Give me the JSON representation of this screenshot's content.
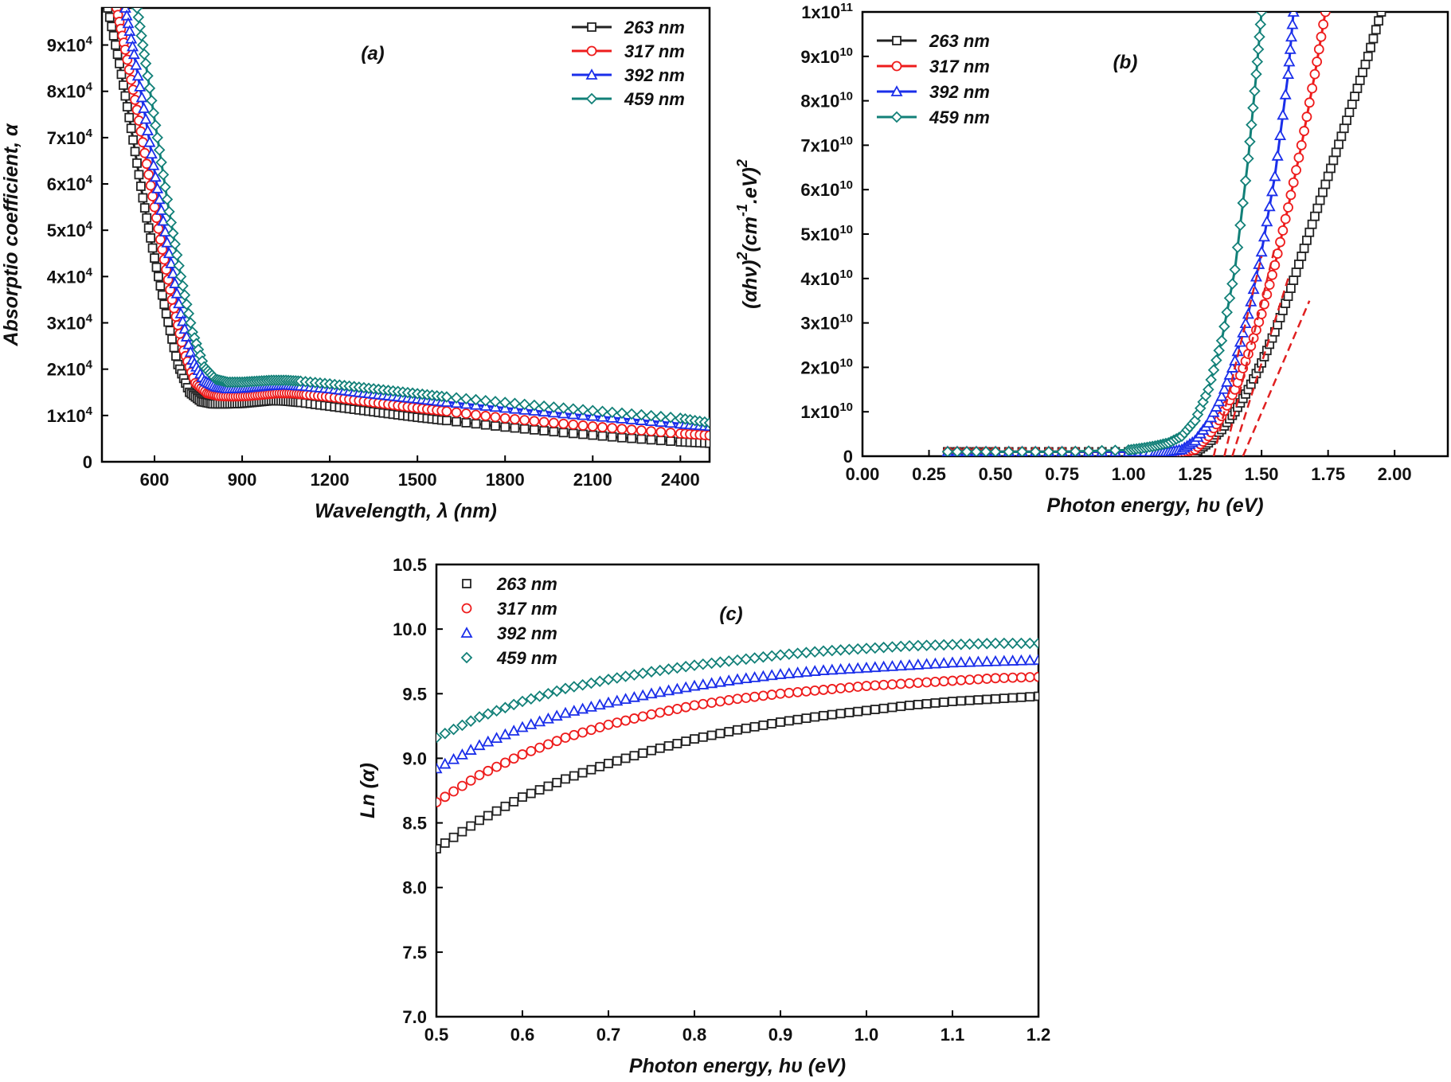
{
  "colors": {
    "263 nm": "#222222",
    "317 nm": "#ee1c1c",
    "392 nm": "#1a2eea",
    "459 nm": "#128078",
    "fit_line": "#e02020"
  },
  "chart_data": [
    {
      "id": "a",
      "type": "line",
      "panel_label": "(a)",
      "xlabel": "Wavelength, λ (nm)",
      "ylabel": "Absorptio coefficient, α",
      "xlim": [
        420,
        2500
      ],
      "ylim": [
        0,
        98000
      ],
      "xticks": [
        600,
        900,
        1200,
        1500,
        1800,
        2100,
        2400
      ],
      "yticks": [
        0,
        10000,
        20000,
        30000,
        40000,
        50000,
        60000,
        70000,
        80000,
        90000
      ],
      "ytick_labels": [
        "0",
        "1x10^4",
        "2x10^4",
        "3x10^4",
        "4x10^4",
        "5x10^4",
        "6x10^4",
        "7x10^4",
        "8x10^4",
        "9x10^4"
      ],
      "legend_position": "top-right",
      "series": [
        {
          "name": "263 nm",
          "x": [
            440,
            480,
            520,
            560,
            600,
            640,
            680,
            720,
            760,
            800,
            850,
            900,
            950,
            1000,
            1050,
            1100,
            1200,
            1300,
            1400,
            1500,
            1600,
            1800,
            2000,
            2200,
            2400,
            2500
          ],
          "y": [
            98000,
            86000,
            72000,
            57000,
            44000,
            32000,
            21000,
            15000,
            13000,
            12500,
            12500,
            12600,
            12900,
            13200,
            13100,
            12800,
            12000,
            11200,
            10400,
            9600,
            8900,
            7500,
            6300,
            5200,
            4300,
            4000
          ]
        },
        {
          "name": "317 nm",
          "x": [
            470,
            500,
            540,
            580,
            620,
            660,
            700,
            740,
            780,
            820,
            870,
            920,
            970,
            1020,
            1070,
            1120,
            1200,
            1300,
            1400,
            1500,
            1600,
            1800,
            2000,
            2200,
            2400,
            2500
          ],
          "y": [
            98000,
            89000,
            76000,
            62000,
            48000,
            35000,
            24000,
            17000,
            14800,
            14200,
            14100,
            14200,
            14500,
            14800,
            14800,
            14500,
            14000,
            13200,
            12400,
            11600,
            10900,
            9400,
            8200,
            7100,
            6100,
            5700
          ]
        },
        {
          "name": "392 nm",
          "x": [
            500,
            530,
            570,
            610,
            650,
            690,
            730,
            770,
            810,
            850,
            900,
            950,
            1000,
            1050,
            1100,
            1200,
            1300,
            1400,
            1500,
            1600,
            1800,
            2000,
            2200,
            2400,
            2500
          ],
          "y": [
            98000,
            88000,
            74000,
            59000,
            45000,
            32000,
            22000,
            17500,
            16200,
            15800,
            15900,
            16200,
            16500,
            16600,
            16400,
            15800,
            15000,
            14300,
            13600,
            12900,
            11600,
            10400,
            9300,
            8200,
            7700
          ]
        },
        {
          "name": "459 nm",
          "x": [
            540,
            570,
            610,
            650,
            690,
            730,
            770,
            810,
            850,
            900,
            950,
            1000,
            1050,
            1100,
            1200,
            1300,
            1400,
            1500,
            1600,
            1800,
            2000,
            2200,
            2400,
            2500
          ],
          "y": [
            98000,
            86000,
            70000,
            54000,
            40000,
            28000,
            20500,
            17800,
            17200,
            17200,
            17400,
            17600,
            17600,
            17400,
            16800,
            16100,
            15400,
            14700,
            14000,
            12800,
            11600,
            10500,
            9400,
            8400
          ]
        }
      ]
    },
    {
      "id": "b",
      "type": "line",
      "panel_label": "(b)",
      "xlabel": "Photon energy, hυ (eV)",
      "ylabel": "(αhν)^2(cm^-1.eV)^2",
      "xlim": [
        0,
        2.2
      ],
      "ylim": [
        0,
        100000000000
      ],
      "xticks": [
        0,
        0.25,
        0.5,
        0.75,
        1.0,
        1.25,
        1.5,
        1.75,
        2.0
      ],
      "xtick_labels": [
        "0.00",
        "0.25",
        "0.50",
        "0.75",
        "1.00",
        "1.25",
        "1.50",
        "1.75",
        "2.00"
      ],
      "yticks": [
        0,
        10000000000,
        20000000000,
        30000000000,
        40000000000,
        50000000000,
        60000000000,
        70000000000,
        80000000000,
        90000000000,
        100000000000
      ],
      "ytick_labels": [
        "0",
        "1x10^10",
        "2x10^10",
        "3x10^10",
        "4x10^10",
        "5x10^10",
        "6x10^10",
        "7x10^10",
        "8x10^10",
        "9x10^10",
        "1x10^11"
      ],
      "legend_position": "top-left",
      "series": [
        {
          "name": "263 nm",
          "x": [
            0.32,
            0.5,
            0.75,
            1.0,
            1.1,
            1.15,
            1.2,
            1.25,
            1.3,
            1.35,
            1.4,
            1.45,
            1.5,
            1.55,
            1.6,
            1.65,
            1.7,
            1.75,
            1.8,
            1.85,
            1.9,
            1.95
          ],
          "y": [
            1000000000,
            1000000000,
            1000000000,
            1000000000,
            900000000,
            600000000,
            400000000,
            800000000,
            3000000000,
            6000000000,
            10000000000,
            15000000000,
            21000000000,
            28000000000,
            36000000000,
            45000000000,
            54000000000,
            63000000000,
            72000000000,
            81000000000,
            90000000000,
            100000000000
          ]
        },
        {
          "name": "317 nm",
          "x": [
            0.32,
            0.5,
            0.75,
            1.0,
            1.1,
            1.15,
            1.2,
            1.25,
            1.3,
            1.35,
            1.4,
            1.45,
            1.5,
            1.55,
            1.6,
            1.65,
            1.7,
            1.74
          ],
          "y": [
            1000000000,
            1000000000,
            1000000000,
            1000000000,
            900000000,
            700000000,
            700000000,
            1500000000,
            4500000000,
            9000000000,
            15000000000,
            23000000000,
            32000000000,
            43000000000,
            56000000000,
            70000000000,
            86000000000,
            100000000000
          ]
        },
        {
          "name": "392 nm",
          "x": [
            0.32,
            0.5,
            0.75,
            1.0,
            1.1,
            1.15,
            1.2,
            1.25,
            1.3,
            1.35,
            1.4,
            1.45,
            1.5,
            1.55,
            1.6,
            1.62
          ],
          "y": [
            1000000000,
            1000000000,
            1000000000,
            1000000000,
            1000000000,
            1000000000,
            1500000000,
            3500000000,
            7500000000,
            13500000000,
            21500000000,
            32000000000,
            46000000000,
            63000000000,
            86000000000,
            100000000000
          ]
        },
        {
          "name": "459 nm",
          "x": [
            0.32,
            0.5,
            0.75,
            1.0,
            1.05,
            1.1,
            1.15,
            1.2,
            1.25,
            1.3,
            1.35,
            1.4,
            1.45,
            1.48,
            1.5
          ],
          "y": [
            1000000000,
            1000000000,
            1000000000,
            1400000000,
            1800000000,
            2300000000,
            3000000000,
            4500000000,
            8000000000,
            15000000000,
            26000000000,
            42000000000,
            67000000000,
            86000000000,
            100000000000
          ]
        }
      ],
      "fit_lines": [
        {
          "x": [
            1.32,
            1.5
          ],
          "y": [
            0,
            45000000000
          ]
        },
        {
          "x": [
            1.36,
            1.55
          ],
          "y": [
            0,
            47000000000
          ]
        },
        {
          "x": [
            1.39,
            1.6
          ],
          "y": [
            0,
            40000000000
          ]
        },
        {
          "x": [
            1.43,
            1.68
          ],
          "y": [
            0,
            35000000000
          ]
        }
      ]
    },
    {
      "id": "c",
      "type": "scatter",
      "panel_label": "(c)",
      "xlabel": "Photon energy, hυ (eV)",
      "ylabel": "Ln (α)",
      "xlim": [
        0.5,
        1.2
      ],
      "ylim": [
        7.0,
        10.5
      ],
      "xticks": [
        0.5,
        0.6,
        0.7,
        0.8,
        0.9,
        1.0,
        1.1,
        1.2
      ],
      "xtick_labels": [
        "0.5",
        "0.6",
        "0.7",
        "0.8",
        "0.9",
        "1.0",
        "1.1",
        "1.2"
      ],
      "yticks": [
        7.0,
        7.5,
        8.0,
        8.5,
        9.0,
        9.5,
        10.0,
        10.5
      ],
      "ytick_labels": [
        "7.0",
        "7.5",
        "8.0",
        "8.5",
        "9.0",
        "9.5",
        "10.0",
        "10.5"
      ],
      "legend_position": "top-left",
      "series": [
        {
          "name": "263 nm",
          "x": [
            0.5,
            0.55,
            0.6,
            0.65,
            0.7,
            0.75,
            0.8,
            0.85,
            0.9,
            0.95,
            1.0,
            1.05,
            1.1,
            1.15,
            1.2
          ],
          "y": [
            8.3,
            8.52,
            8.7,
            8.84,
            8.96,
            9.06,
            9.15,
            9.22,
            9.28,
            9.33,
            9.37,
            9.41,
            9.44,
            9.46,
            9.48
          ]
        },
        {
          "name": "317 nm",
          "x": [
            0.5,
            0.55,
            0.6,
            0.65,
            0.7,
            0.75,
            0.8,
            0.85,
            0.9,
            0.95,
            1.0,
            1.05,
            1.1,
            1.15,
            1.2
          ],
          "y": [
            8.66,
            8.87,
            9.03,
            9.16,
            9.26,
            9.34,
            9.41,
            9.46,
            9.5,
            9.53,
            9.56,
            9.58,
            9.6,
            9.62,
            9.63
          ]
        },
        {
          "name": "392 nm",
          "x": [
            0.5,
            0.55,
            0.6,
            0.65,
            0.7,
            0.75,
            0.8,
            0.85,
            0.9,
            0.95,
            1.0,
            1.05,
            1.1,
            1.15,
            1.2
          ],
          "y": [
            8.92,
            9.1,
            9.24,
            9.35,
            9.43,
            9.5,
            9.56,
            9.61,
            9.65,
            9.68,
            9.7,
            9.72,
            9.74,
            9.75,
            9.76
          ]
        },
        {
          "name": "459 nm",
          "x": [
            0.5,
            0.55,
            0.6,
            0.65,
            0.7,
            0.75,
            0.8,
            0.85,
            0.9,
            0.95,
            1.0,
            1.05,
            1.1,
            1.15,
            1.2
          ],
          "y": [
            9.16,
            9.32,
            9.44,
            9.54,
            9.61,
            9.67,
            9.72,
            9.76,
            9.8,
            9.83,
            9.85,
            9.87,
            9.88,
            9.89,
            9.89
          ]
        }
      ]
    }
  ]
}
